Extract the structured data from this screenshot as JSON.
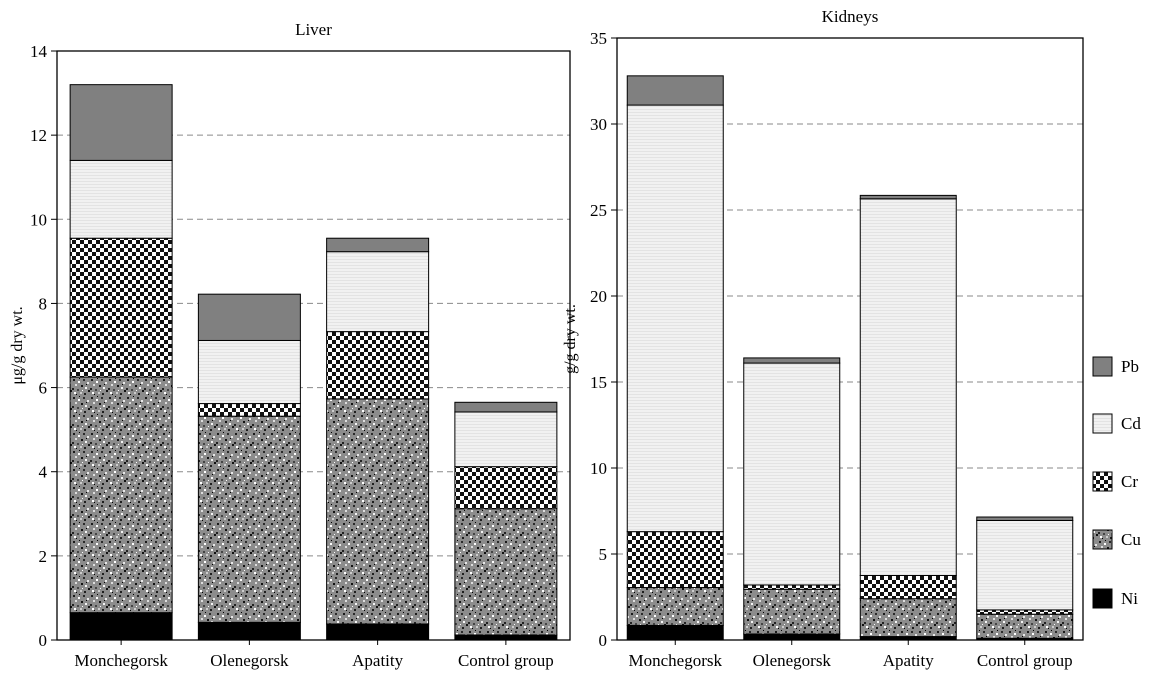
{
  "chart_data": [
    {
      "type": "bar",
      "stacked": true,
      "title": "Liver",
      "ylabel": "μg/g dry wt.",
      "xlabel": "",
      "categories": [
        "Monchegorsk",
        "Olenegorsk",
        "Apatity",
        "Control group"
      ],
      "ylim": [
        0,
        14
      ],
      "yticks": [
        0,
        2,
        4,
        6,
        8,
        10,
        12,
        14
      ],
      "grid": "dashed horizontal",
      "series": [
        {
          "name": "Ni",
          "values": [
            0.65,
            0.42,
            0.38,
            0.12
          ]
        },
        {
          "name": "Cu",
          "values": [
            5.6,
            4.9,
            5.35,
            3.0
          ]
        },
        {
          "name": "Cr",
          "values": [
            3.3,
            0.3,
            1.6,
            1.0
          ]
        },
        {
          "name": "Cd",
          "values": [
            1.85,
            1.5,
            1.9,
            1.3
          ]
        },
        {
          "name": "Pb",
          "values": [
            1.8,
            1.1,
            0.32,
            0.23
          ]
        }
      ]
    },
    {
      "type": "bar",
      "stacked": true,
      "title": "Kidneys",
      "ylabel": "g/g dry wt.",
      "xlabel": "",
      "categories": [
        "Monchegorsk",
        "Olenegorsk",
        "Apatity",
        "Control group"
      ],
      "ylim": [
        0,
        35
      ],
      "yticks": [
        0,
        5,
        10,
        15,
        20,
        25,
        30,
        35
      ],
      "grid": "dashed horizontal",
      "series": [
        {
          "name": "Ni",
          "values": [
            0.85,
            0.35,
            0.2,
            0.1
          ]
        },
        {
          "name": "Cu",
          "values": [
            2.2,
            2.6,
            2.2,
            1.4
          ]
        },
        {
          "name": "Cr",
          "values": [
            3.25,
            0.25,
            1.35,
            0.25
          ]
        },
        {
          "name": "Cd",
          "values": [
            24.8,
            12.9,
            21.9,
            5.2
          ]
        },
        {
          "name": "Pb",
          "values": [
            1.7,
            0.3,
            0.2,
            0.2
          ]
        }
      ]
    }
  ],
  "legend": {
    "placement": "right",
    "items": [
      {
        "name": "Pb",
        "color": "#808080",
        "pattern": "solid-gray"
      },
      {
        "name": "Cd",
        "color": "#f2f2f2",
        "pattern": "light-hatch"
      },
      {
        "name": "Cr",
        "color": "#000000",
        "pattern": "checker"
      },
      {
        "name": "Cu",
        "color": "#7a7a7a",
        "pattern": "granite"
      },
      {
        "name": "Ni",
        "color": "#000000",
        "pattern": "solid-black"
      }
    ]
  }
}
